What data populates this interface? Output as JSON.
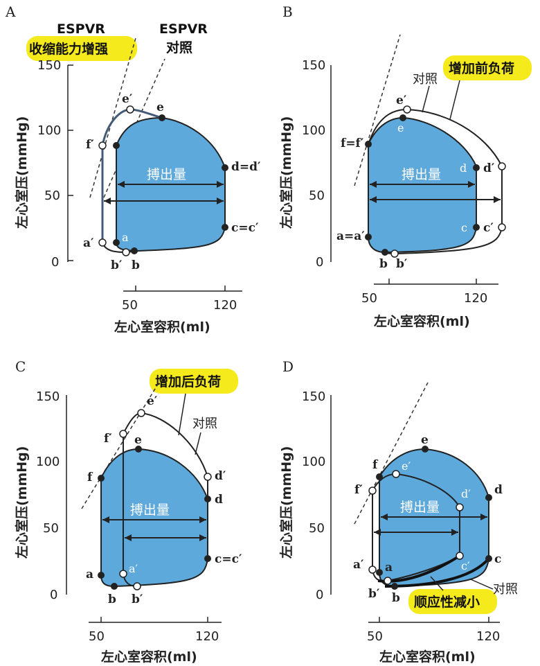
{
  "chart_data": [
    {
      "panel": "A",
      "type": "area",
      "ylabel": "左心室压(mmHg)",
      "xlabel": "左心室容积(ml)",
      "xticks": [
        50,
        120
      ],
      "yticks": [
        0,
        50,
        100,
        150
      ],
      "xlim": [
        40,
        130
      ],
      "ylim": [
        0,
        150
      ],
      "annotations": {
        "espvr_enhanced_line1": "ESPVR",
        "espvr_enhanced_line2": "收缩能力增强",
        "espvr_control_line1": "ESPVR",
        "espvr_control_line2": "对照",
        "stroke_volume": "搏出量"
      },
      "points": [
        {
          "label": "a",
          "x": 50,
          "y": 14
        },
        {
          "label": "b",
          "x": 62,
          "y": 8
        },
        {
          "label": "c=c′",
          "x": 120,
          "y": 26
        },
        {
          "label": "d=d′",
          "x": 120,
          "y": 72
        },
        {
          "label": "e",
          "x": 80,
          "y": 110
        },
        {
          "label": "f",
          "x": 50,
          "y": 90
        },
        {
          "label": "a′",
          "x": 40,
          "y": 14
        },
        {
          "label": "b′",
          "x": 55,
          "y": 7
        },
        {
          "label": "e′",
          "x": 58,
          "y": 116
        },
        {
          "label": "f′",
          "x": 40,
          "y": 88
        }
      ]
    },
    {
      "panel": "B",
      "type": "area",
      "ylabel": "左心室压(mmHg)",
      "xlabel": "左心室容积(ml)",
      "xticks": [
        50,
        120
      ],
      "yticks": [
        0,
        50,
        100,
        150
      ],
      "xlim": [
        40,
        140
      ],
      "ylim": [
        0,
        150
      ],
      "annotations": {
        "preload": "增加前负荷",
        "control": "对照",
        "stroke_volume": "搏出量"
      },
      "points": [
        {
          "label": "a=a′",
          "x": 50,
          "y": 15
        },
        {
          "label": "b",
          "x": 60,
          "y": 6
        },
        {
          "label": "b′",
          "x": 66,
          "y": 6
        },
        {
          "label": "c",
          "x": 120,
          "y": 25
        },
        {
          "label": "d",
          "x": 120,
          "y": 71
        },
        {
          "label": "e",
          "x": 75,
          "y": 110
        },
        {
          "label": "f=f′",
          "x": 50,
          "y": 90
        },
        {
          "label": "c′",
          "x": 136,
          "y": 26
        },
        {
          "label": "d′",
          "x": 136,
          "y": 72
        },
        {
          "label": "e′",
          "x": 78,
          "y": 116
        }
      ]
    },
    {
      "panel": "C",
      "type": "area",
      "ylabel": "左心室压(mmHg)",
      "xlabel": "左心室容积(ml)",
      "xticks": [
        50,
        120
      ],
      "yticks": [
        0,
        50,
        100,
        150
      ],
      "xlim": [
        40,
        130
      ],
      "ylim": [
        0,
        150
      ],
      "annotations": {
        "afterload": "增加后负荷",
        "control": "对照",
        "stroke_volume": "搏出量"
      },
      "points": [
        {
          "label": "a",
          "x": 50,
          "y": 14
        },
        {
          "label": "b",
          "x": 60,
          "y": 6
        },
        {
          "label": "c=c′",
          "x": 120,
          "y": 26
        },
        {
          "label": "d",
          "x": 120,
          "y": 72
        },
        {
          "label": "e",
          "x": 75,
          "y": 110
        },
        {
          "label": "f",
          "x": 50,
          "y": 88
        },
        {
          "label": "a′",
          "x": 64,
          "y": 14
        },
        {
          "label": "b′",
          "x": 74,
          "y": 7
        },
        {
          "label": "d′",
          "x": 120,
          "y": 90
        },
        {
          "label": "e′",
          "x": 77,
          "y": 138
        },
        {
          "label": "f′",
          "x": 64,
          "y": 122
        }
      ]
    },
    {
      "panel": "D",
      "type": "area",
      "ylabel": "左心室压(mmHg)",
      "xlabel": "左心室容积(ml)",
      "xticks": [
        50,
        120
      ],
      "yticks": [
        0,
        50,
        100,
        150
      ],
      "xlim": [
        40,
        130
      ],
      "ylim": [
        0,
        150
      ],
      "annotations": {
        "compliance": "顺应性减小",
        "control": "对照",
        "stroke_volume": "搏出量"
      },
      "points": [
        {
          "label": "a",
          "x": 50,
          "y": 15
        },
        {
          "label": "b",
          "x": 60,
          "y": 6
        },
        {
          "label": "c",
          "x": 120,
          "y": 26
        },
        {
          "label": "d",
          "x": 120,
          "y": 72
        },
        {
          "label": "e",
          "x": 80,
          "y": 110
        },
        {
          "label": "f",
          "x": 50,
          "y": 88
        },
        {
          "label": "a′",
          "x": 46,
          "y": 16
        },
        {
          "label": "b′",
          "x": 48,
          "y": 9
        },
        {
          "label": "c′",
          "x": 104,
          "y": 28
        },
        {
          "label": "d′",
          "x": 104,
          "y": 66
        },
        {
          "label": "e′",
          "x": 62,
          "y": 92
        },
        {
          "label": "f′",
          "x": 46,
          "y": 78
        }
      ]
    }
  ]
}
